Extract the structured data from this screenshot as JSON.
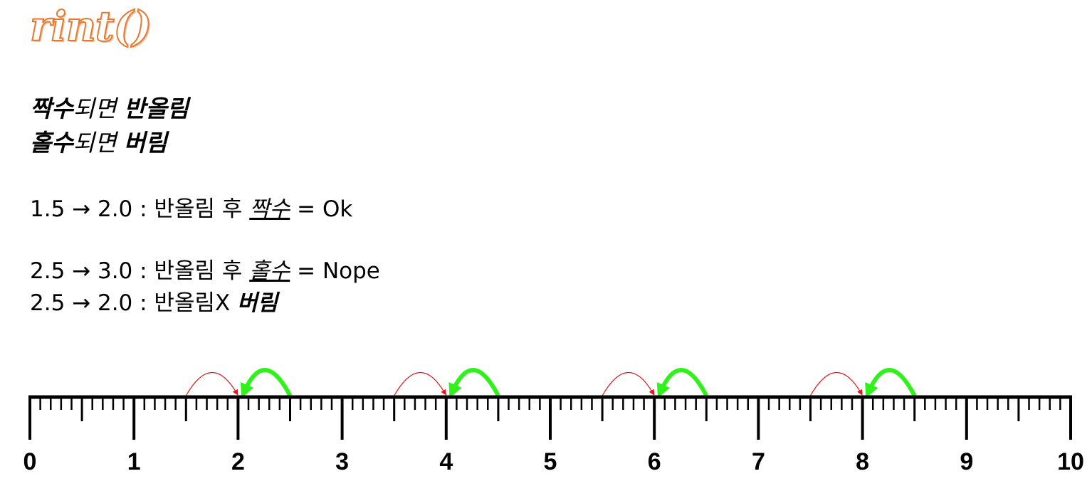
{
  "title": "rint()",
  "rules": [
    {
      "strong1": "짝수",
      "light": "되면 ",
      "strong2": "반올림"
    },
    {
      "strong1": "홀수",
      "light": "되면 ",
      "strong2": "버림"
    }
  ],
  "examples": [
    {
      "prefix": "1.5 → 2.0 : 반올림 후 ",
      "emph": "짝수",
      "suffix": " = Ok"
    },
    {
      "prefix": "2.5 → 3.0 : 반올림 후 ",
      "emph": "홀수",
      "suffix": " = Nope"
    },
    {
      "prefix": "2.5 → 2.0 : 반올림X ",
      "bold": "버림"
    }
  ],
  "ruler": {
    "labels": [
      "0",
      "1",
      "2",
      "3",
      "4",
      "5",
      "6",
      "7",
      "8",
      "9",
      "10"
    ],
    "min": 0,
    "max": 10,
    "round_up_arcs": [
      {
        "from": 1.5,
        "to": 2
      },
      {
        "from": 3.5,
        "to": 4
      },
      {
        "from": 5.5,
        "to": 6
      },
      {
        "from": 7.5,
        "to": 8
      }
    ],
    "round_down_arcs": [
      {
        "from": 2.5,
        "to": 2
      },
      {
        "from": 4.5,
        "to": 4
      },
      {
        "from": 6.5,
        "to": 6
      },
      {
        "from": 8.5,
        "to": 8
      }
    ],
    "colors": {
      "up_arc": "#e8141b",
      "down_arc": "#2ff21b",
      "ruler": "#000000"
    }
  }
}
